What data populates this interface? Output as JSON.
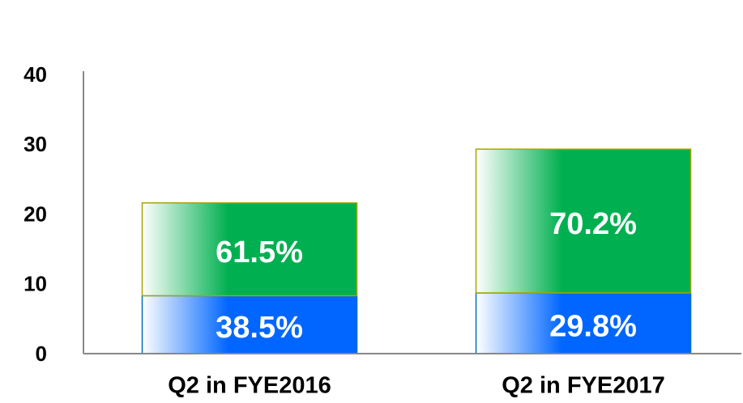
{
  "chart_data": {
    "type": "bar",
    "stacked": true,
    "categories": [
      "Q2 in FYE2016",
      "Q2 in FYE2017"
    ],
    "series": [
      {
        "color": "#0066ff",
        "border": "#0070c0",
        "values": [
          8.3,
          8.7
        ],
        "labels": [
          "38.5%",
          "29.8%"
        ]
      },
      {
        "color": "#00b050",
        "border": "#a6a600",
        "values": [
          13.3,
          20.6
        ],
        "labels": [
          "61.5%",
          "70.2%"
        ]
      }
    ],
    "ylim": [
      0,
      40
    ],
    "yticks": [
      0,
      10,
      20,
      30,
      40
    ],
    "grid": false
  }
}
